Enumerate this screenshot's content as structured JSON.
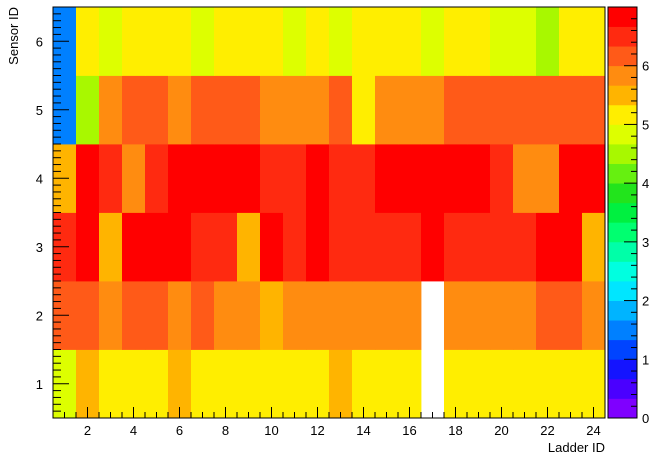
{
  "chart_data": {
    "type": "heatmap",
    "xlabel": "Ladder ID",
    "ylabel": "Sensor ID",
    "x_range": [
      0.5,
      24.5
    ],
    "y_range": [
      0.5,
      6.5
    ],
    "x_ticks": [
      2,
      4,
      6,
      8,
      10,
      12,
      14,
      16,
      18,
      20,
      22,
      24
    ],
    "y_ticks": [
      1,
      2,
      3,
      4,
      5,
      6
    ],
    "z_range": [
      0,
      7
    ],
    "z_ticks": [
      0,
      1,
      2,
      3,
      4,
      5,
      6
    ],
    "palette": [
      "#7f00ff",
      "#4a00ff",
      "#1414ff",
      "#0044ff",
      "#0080ff",
      "#00b4ff",
      "#00e6ff",
      "#00ffe0",
      "#00ffa8",
      "#00ff70",
      "#00f040",
      "#22e41c",
      "#66f010",
      "#a8f800",
      "#ddff00",
      "#ffee00",
      "#ffb400",
      "#ff8c10",
      "#ff5a18",
      "#ff2a10",
      "#ff0000"
    ],
    "x": [
      1,
      2,
      3,
      4,
      5,
      6,
      7,
      8,
      9,
      10,
      11,
      12,
      13,
      14,
      15,
      16,
      17,
      18,
      19,
      20,
      21,
      22,
      23,
      24
    ],
    "y": [
      1,
      2,
      3,
      4,
      5,
      6
    ],
    "z": [
      [
        4.7,
        5.4,
        5.1,
        5.1,
        5.1,
        5.5,
        5.1,
        5.1,
        5.1,
        5.1,
        5.1,
        5.1,
        5.5,
        5.1,
        5.1,
        5.1,
        null,
        5.1,
        5.1,
        5.1,
        5.1,
        5.1,
        5.1,
        5.1
      ],
      [
        6.2,
        6.2,
        5.9,
        6.2,
        6.2,
        5.9,
        6.2,
        5.9,
        5.9,
        5.4,
        5.9,
        5.9,
        5.9,
        5.9,
        5.9,
        5.9,
        null,
        5.9,
        5.9,
        5.9,
        5.9,
        6.2,
        6.2,
        5.9
      ],
      [
        6.5,
        7.0,
        5.4,
        7.0,
        7.0,
        7.0,
        6.5,
        6.5,
        5.4,
        7.0,
        6.5,
        7.0,
        6.5,
        6.5,
        6.5,
        6.5,
        7.0,
        6.5,
        6.5,
        6.5,
        6.5,
        7.0,
        7.0,
        5.4
      ],
      [
        5.4,
        7.0,
        6.5,
        5.9,
        6.5,
        7.0,
        7.0,
        7.0,
        7.0,
        6.5,
        6.5,
        7.0,
        6.5,
        6.5,
        7.0,
        7.0,
        7.0,
        7.0,
        7.0,
        6.5,
        5.9,
        5.9,
        7.0,
        7.0
      ],
      [
        1.5,
        4.6,
        5.9,
        6.2,
        6.2,
        5.9,
        6.2,
        6.2,
        6.2,
        5.9,
        5.9,
        5.9,
        6.2,
        5.3,
        5.9,
        5.9,
        5.9,
        6.2,
        6.2,
        6.2,
        6.2,
        6.2,
        6.2,
        6.2
      ],
      [
        1.5,
        5.1,
        4.9,
        5.1,
        5.1,
        5.1,
        4.9,
        5.1,
        5.1,
        5.1,
        4.9,
        5.1,
        4.9,
        5.1,
        5.1,
        5.1,
        4.9,
        5.1,
        5.1,
        4.9,
        4.9,
        4.6,
        5.1,
        5.1
      ]
    ],
    "grid": false,
    "legend": "color-bar-right"
  }
}
